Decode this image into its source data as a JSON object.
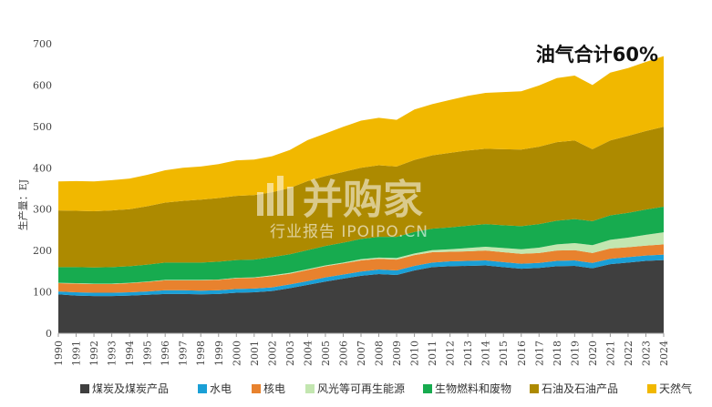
{
  "chart_data": {
    "type": "area",
    "stacked": true,
    "ylabel": "生产量：EJ",
    "annotation": "油气合计60%",
    "ylim": [
      0,
      700
    ],
    "yticks": [
      0,
      100,
      200,
      300,
      400,
      500,
      600,
      700
    ],
    "grid": false,
    "legend_position": "bottom",
    "x": [
      "1990",
      "1991",
      "1992",
      "1993",
      "1994",
      "1995",
      "1996",
      "1997",
      "1998",
      "1999",
      "2000",
      "2001",
      "2002",
      "2003",
      "2004",
      "2005",
      "2006",
      "2007",
      "2008",
      "2009",
      "2010",
      "2011",
      "2012",
      "2013",
      "2014",
      "2015",
      "2016",
      "2017",
      "2018",
      "2019",
      "2020",
      "2021",
      "2022",
      "2023",
      "2024"
    ],
    "series": [
      {
        "name": "煤炭及煤炭产品",
        "color": "#3f3f3f",
        "values": [
          94,
          91,
          90,
          90,
          91,
          93,
          95,
          95,
          94,
          95,
          98,
          99,
          102,
          109,
          117,
          125,
          132,
          139,
          143,
          141,
          152,
          160,
          162,
          163,
          164,
          160,
          156,
          158,
          162,
          163,
          157,
          167,
          171,
          175,
          177
        ]
      },
      {
        "name": "水电",
        "color": "#1a9fd6",
        "values": [
          7,
          8,
          8,
          8,
          8,
          8,
          9,
          9,
          9,
          9,
          9,
          9,
          9,
          9,
          9,
          10,
          10,
          10,
          11,
          11,
          11,
          11,
          12,
          12,
          12,
          12,
          12,
          12,
          13,
          13,
          13,
          13,
          13,
          13,
          13
        ]
      },
      {
        "name": "核电",
        "color": "#e8822e",
        "values": [
          20,
          21,
          21,
          21,
          22,
          23,
          24,
          24,
          25,
          25,
          26,
          26,
          27,
          26,
          27,
          27,
          27,
          27,
          26,
          26,
          26,
          25,
          23,
          23,
          24,
          24,
          24,
          24,
          25,
          25,
          24,
          25,
          24,
          24,
          25
        ]
      },
      {
        "name": "风光等可再生能源",
        "color": "#c3e6b0",
        "values": [
          1,
          1,
          1,
          1,
          1,
          1,
          1,
          1,
          1,
          1,
          1,
          1,
          2,
          2,
          2,
          2,
          2,
          3,
          3,
          4,
          4,
          5,
          6,
          8,
          9,
          10,
          11,
          13,
          15,
          17,
          19,
          21,
          23,
          26,
          29
        ]
      },
      {
        "name": "生物燃料和废物",
        "color": "#17ab4f",
        "values": [
          38,
          39,
          39,
          40,
          40,
          41,
          42,
          42,
          42,
          43,
          43,
          43,
          44,
          45,
          46,
          47,
          48,
          49,
          50,
          51,
          52,
          52,
          53,
          54,
          55,
          55,
          56,
          57,
          57,
          58,
          58,
          59,
          60,
          61,
          62
        ]
      },
      {
        "name": "石油及石油产品",
        "color": "#ad8a00",
        "values": [
          137,
          136,
          136,
          137,
          138,
          141,
          145,
          149,
          152,
          154,
          155,
          156,
          157,
          160,
          167,
          169,
          171,
          172,
          173,
          170,
          174,
          177,
          180,
          182,
          182,
          184,
          185,
          187,
          190,
          190,
          174,
          181,
          186,
          190,
          193
        ]
      },
      {
        "name": "天然气",
        "color": "#f1b800",
        "values": [
          70,
          72,
          72,
          73,
          74,
          76,
          78,
          80,
          80,
          82,
          86,
          86,
          87,
          92,
          99,
          103,
          109,
          114,
          115,
          113,
          122,
          124,
          128,
          132,
          135,
          138,
          141,
          148,
          155,
          157,
          155,
          164,
          164,
          167,
          171
        ]
      }
    ]
  },
  "watermark": {
    "brand": "并购家",
    "slogan": "行业报告 IPOIPO.CN"
  }
}
